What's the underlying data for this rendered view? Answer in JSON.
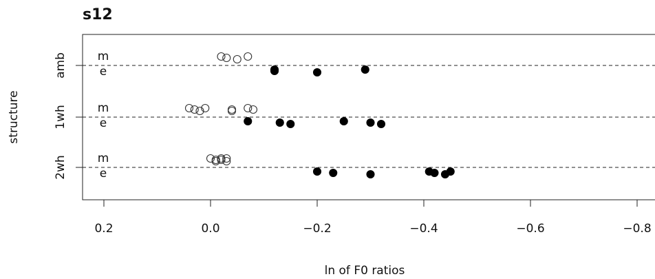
{
  "chart_data": {
    "type": "strip",
    "title": "s12",
    "xlabel": "ln of F0 ratios",
    "ylabel": "structure",
    "xlim": [
      0.24,
      -0.88
    ],
    "xticks": [
      0.2,
      {
        "value": 0,
        "label": "0.0"
      },
      {
        "value": -0.2,
        "label": "−0.2"
      },
      {
        "value": -0.4,
        "label": "−0.4"
      },
      {
        "value": -0.6,
        "label": "−0.6"
      },
      {
        "value": -0.8,
        "label": "−0.8"
      }
    ],
    "groups": [
      {
        "category": "amb",
        "series": [
          {
            "name": "m",
            "color": "#333333",
            "filled": false,
            "values": [
              -0.02,
              -0.03,
              -0.05,
              -0.07
            ]
          },
          {
            "name": "e",
            "color": "#000000",
            "filled": true,
            "values": [
              -0.12,
              -0.12,
              -0.2,
              -0.29
            ]
          }
        ]
      },
      {
        "category": "1wh",
        "series": [
          {
            "name": "m",
            "color": "#333333",
            "filled": false,
            "values": [
              0.04,
              0.03,
              0.02,
              0.01,
              -0.04,
              -0.04,
              -0.07,
              -0.08
            ]
          },
          {
            "name": "e",
            "color": "#000000",
            "filled": true,
            "values": [
              -0.07,
              -0.13,
              -0.15,
              -0.25,
              -0.3,
              -0.32
            ]
          }
        ]
      },
      {
        "category": "2wh",
        "series": [
          {
            "name": "m",
            "color": "#333333",
            "filled": false,
            "values": [
              0.0,
              -0.01,
              -0.01,
              -0.02,
              -0.02,
              -0.03,
              -0.03
            ]
          },
          {
            "name": "e",
            "color": "#000000",
            "filled": true,
            "values": [
              -0.2,
              -0.23,
              -0.3,
              -0.41,
              -0.42,
              -0.44,
              -0.45
            ]
          }
        ]
      }
    ]
  }
}
